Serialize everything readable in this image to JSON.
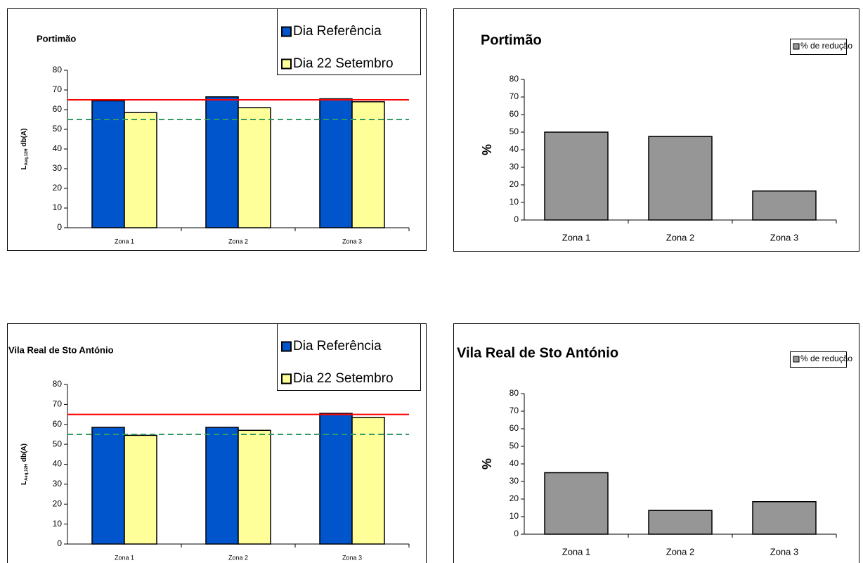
{
  "chart_data": [
    {
      "type": "bar",
      "title": "Portimão",
      "categories": [
        "Zona 1",
        "Zona 2",
        "Zona 3"
      ],
      "series": [
        {
          "name": "Dia Referência",
          "color": "#0055cc",
          "values": [
            64.5,
            66.5,
            65.5
          ]
        },
        {
          "name": "Dia 22 Setembro",
          "color": "#ffff99",
          "values": [
            58.5,
            61,
            64
          ]
        }
      ],
      "y_label": {
        "main": "L",
        "sub": "Aeq,12H",
        "unit": "db(A)"
      },
      "reference_lines": [
        {
          "value": 65,
          "color": "#ff0000",
          "style": "solid"
        },
        {
          "value": 55,
          "color": "#339966",
          "style": "dashed"
        }
      ],
      "ylim": [
        0,
        80
      ],
      "yticks": [
        0,
        10,
        20,
        30,
        40,
        50,
        60,
        70,
        80
      ],
      "legend": "top-right"
    },
    {
      "type": "bar",
      "title": "Portimão",
      "categories": [
        "Zona 1",
        "Zona 2",
        "Zona 3"
      ],
      "series": [
        {
          "name": "% de redução",
          "color": "#969696",
          "values": [
            50,
            47.5,
            16.5
          ]
        }
      ],
      "y_label": "%",
      "ylim": [
        0,
        80
      ],
      "yticks": [
        0,
        10,
        20,
        30,
        40,
        50,
        60,
        70,
        80
      ],
      "legend": "top-right"
    },
    {
      "type": "bar",
      "title": "Vila Real de Sto António",
      "categories": [
        "Zona 1",
        "Zona 2",
        "Zona 3"
      ],
      "series": [
        {
          "name": "Dia Referência",
          "color": "#0055cc",
          "values": [
            58.5,
            58.5,
            65.5
          ]
        },
        {
          "name": "Dia 22 Setembro",
          "color": "#ffff99",
          "values": [
            54.5,
            57,
            63.5
          ]
        }
      ],
      "y_label": {
        "main": "L",
        "sub": "Aeq,12H",
        "unit": "db(A)"
      },
      "reference_lines": [
        {
          "value": 65,
          "color": "#ff0000",
          "style": "solid"
        },
        {
          "value": 55,
          "color": "#339966",
          "style": "dashed"
        }
      ],
      "ylim": [
        0,
        80
      ],
      "yticks": [
        0,
        10,
        20,
        30,
        40,
        50,
        60,
        70,
        80
      ],
      "legend": "top-right"
    },
    {
      "type": "bar",
      "title": "Vila Real de Sto António",
      "categories": [
        "Zona 1",
        "Zona 2",
        "Zona 3"
      ],
      "series": [
        {
          "name": "% de redução",
          "color": "#969696",
          "values": [
            35,
            13.5,
            18.5
          ]
        }
      ],
      "y_label": "%",
      "ylim": [
        0,
        80
      ],
      "yticks": [
        0,
        10,
        20,
        30,
        40,
        50,
        60,
        70,
        80
      ],
      "legend": "top-right"
    }
  ]
}
